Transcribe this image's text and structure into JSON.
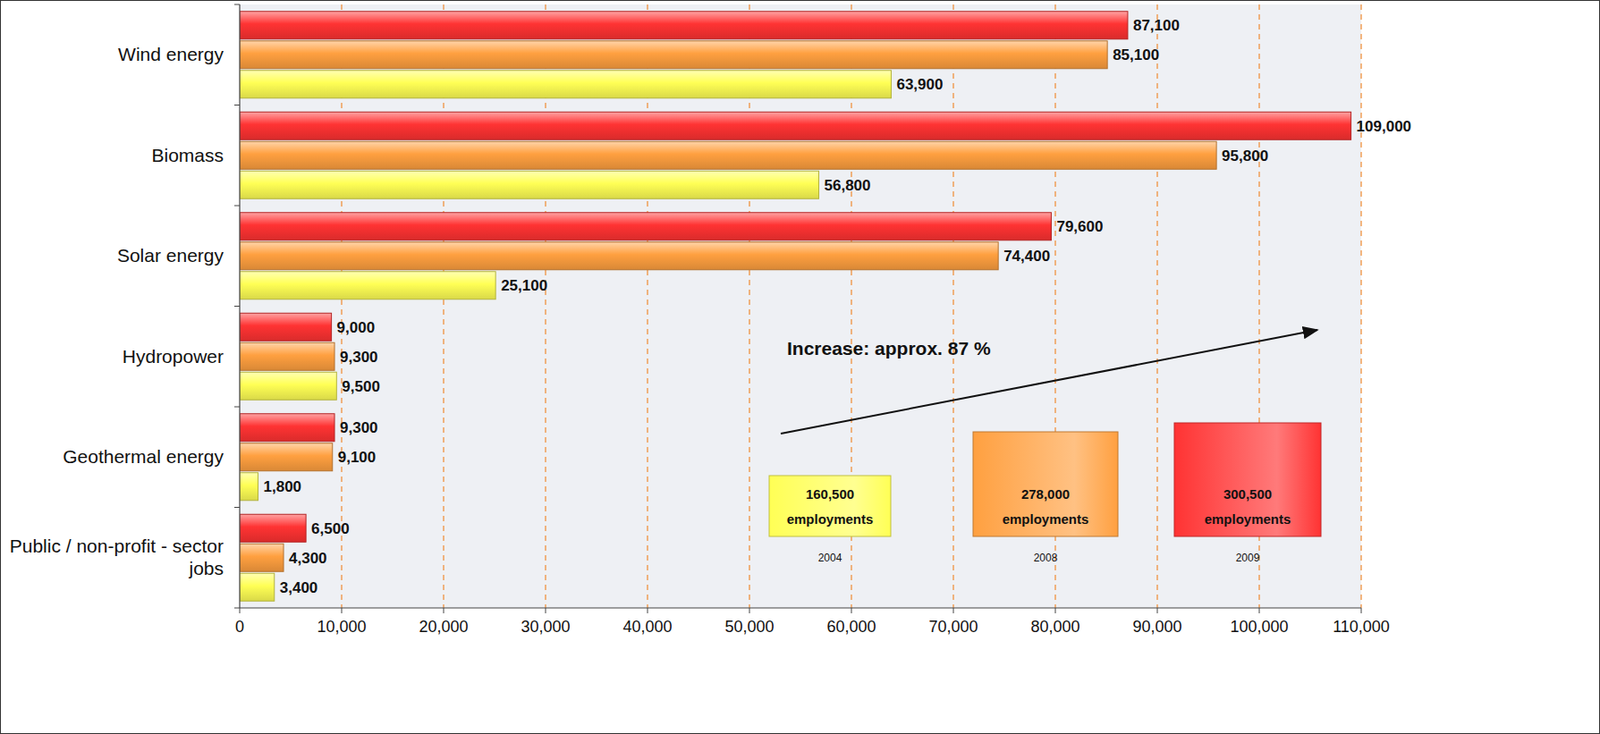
{
  "chart_data": {
    "type": "bar",
    "orientation": "horizontal",
    "categories": [
      "Wind energy",
      "Biomass",
      "Solar energy",
      "Hydropower",
      "Geothermal energy",
      "Public / non-profit - sector jobs"
    ],
    "series": [
      {
        "name": "2009",
        "color": "#ff3333",
        "label": "300,500 employments",
        "values": [
          87100,
          109000,
          79600,
          9000,
          9300,
          6500
        ],
        "value_labels": [
          "87,100",
          "109,000",
          "79,600",
          "9,000",
          "9,300",
          "6,500"
        ]
      },
      {
        "name": "2008",
        "color": "#ffa040",
        "label": "278,000 employments",
        "values": [
          85100,
          95800,
          74400,
          9300,
          9100,
          4300
        ],
        "value_labels": [
          "85,100",
          "95,800",
          "74,400",
          "9,300",
          "9,100",
          "4,300"
        ]
      },
      {
        "name": "2004",
        "color": "#ffff55",
        "label": "160,500 employments",
        "values": [
          63900,
          56800,
          25100,
          9500,
          1800,
          3400
        ],
        "value_labels": [
          "63,900",
          "56,800",
          "25,100",
          "9,500",
          "1,800",
          "3,400"
        ]
      }
    ],
    "xlim": [
      0,
      110000
    ],
    "xticks": [
      0,
      {
        "value": 10000,
        "label": "10,000"
      },
      {
        "value": 20000,
        "label": "20,000"
      },
      {
        "value": 30000,
        "label": "30,000"
      },
      {
        "value": 40000,
        "label": "40,000"
      },
      {
        "value": 50000,
        "label": "50,000"
      },
      {
        "value": 60000,
        "label": "60,000"
      },
      {
        "value": 70000,
        "label": "70,000"
      },
      {
        "value": 80000,
        "label": "80,000"
      },
      {
        "value": 90000,
        "label": "90,000"
      },
      {
        "value": 100000,
        "label": "100,000"
      },
      {
        "value": 110000,
        "label": "110,000"
      }
    ],
    "grid": true,
    "data_labels": true,
    "legend": "lower right",
    "annotations": [
      {
        "text": "Increase: approx. 87 %"
      }
    ]
  }
}
